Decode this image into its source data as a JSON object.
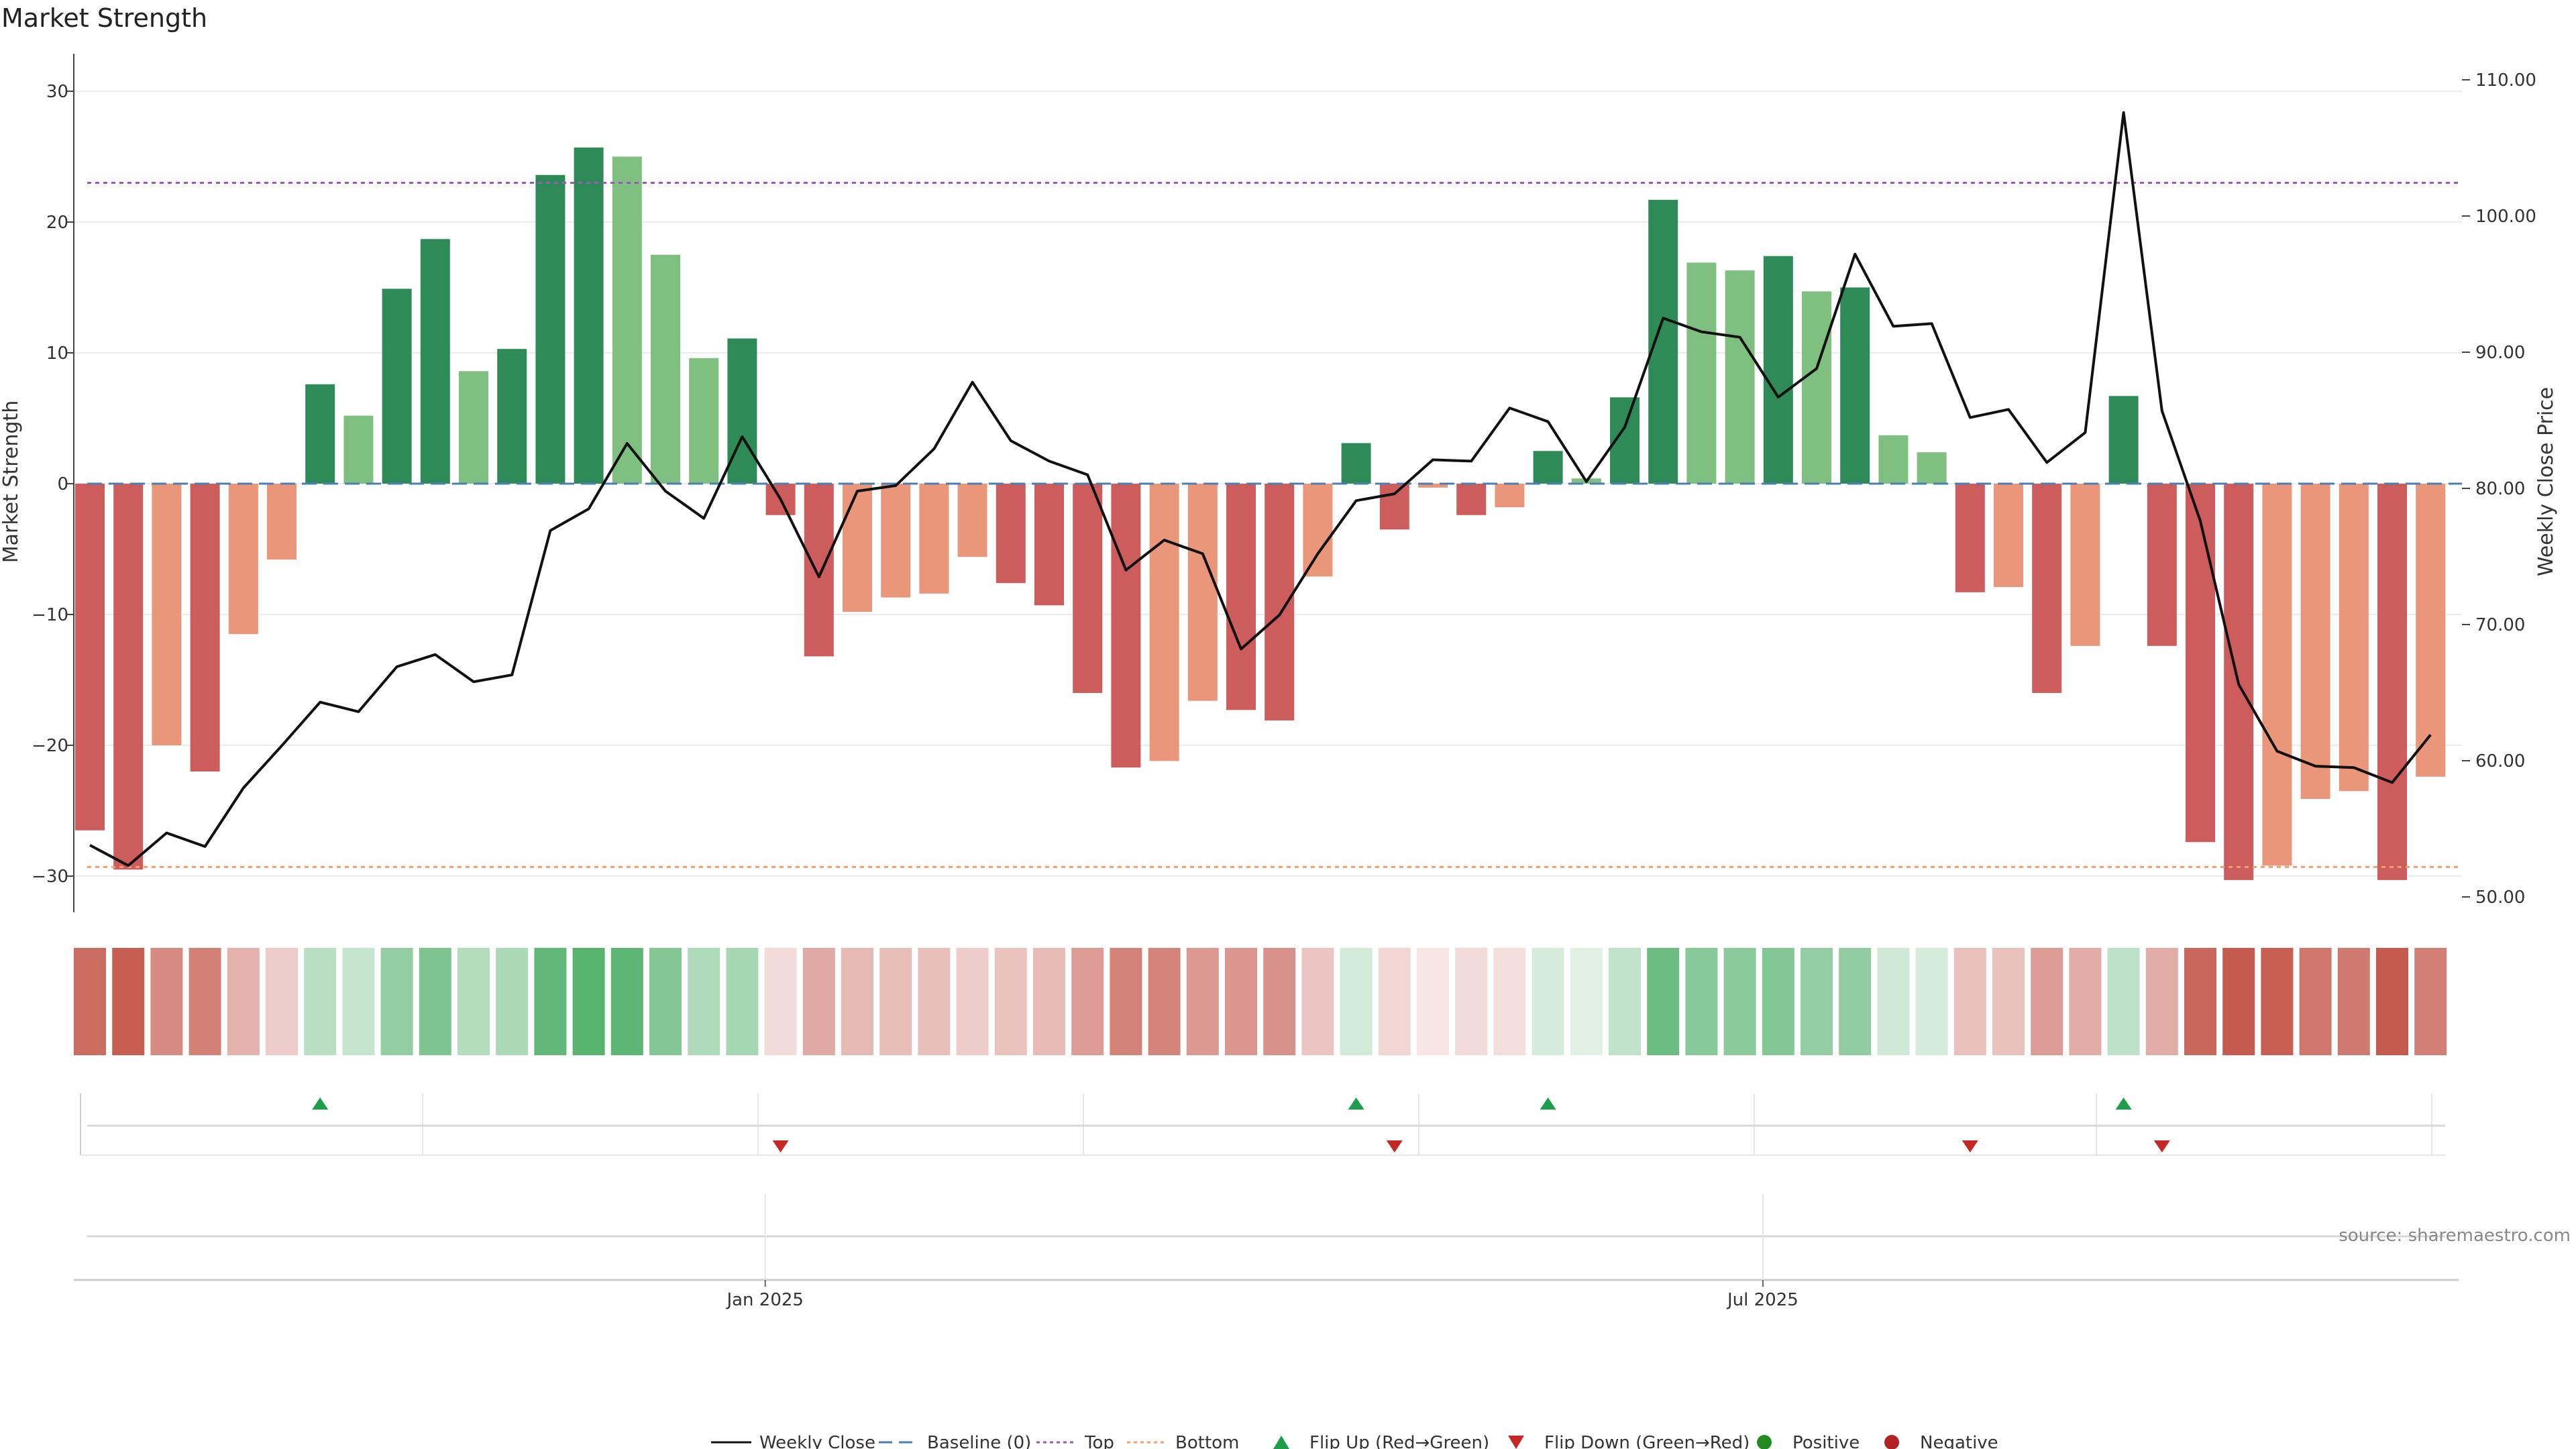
{
  "chart_data": {
    "type": "bar",
    "title": "Market Strength",
    "ylabel_left": "Market Strength",
    "ylabel_right": "Weekly Close Price",
    "source": "source: sharemaestro.com",
    "ylim_left": [
      -32,
      30
    ],
    "ylim_right": [
      49,
      110
    ],
    "yticks_left": [
      30,
      20,
      10,
      0,
      -10,
      -20,
      -30
    ],
    "ytick_labels_left": [
      "30",
      "20",
      "10",
      "0",
      "−10",
      "−20",
      "−30"
    ],
    "yticks_right": [
      110,
      100,
      90,
      80,
      70,
      60,
      50
    ],
    "ytick_labels_right": [
      "110.00",
      "100.00",
      "90.00",
      "80.00",
      "70.00",
      "60.00",
      "50.00"
    ],
    "x_tick_labels": [
      {
        "label": "Jan 2025",
        "index": 17.6
      },
      {
        "label": "Jul 2025",
        "index": 43.6
      }
    ],
    "baseline": 0,
    "top_threshold": 23,
    "bottom_threshold": -29.3,
    "strength": [
      -26.5,
      -29.5,
      -20,
      -22,
      -11.5,
      -5.8,
      7.6,
      5.2,
      14.9,
      18.7,
      8.6,
      10.3,
      23.6,
      25.7,
      25,
      17.5,
      9.6,
      11.1,
      -2.4,
      -13.2,
      -9.8,
      -8.7,
      -8.4,
      -5.6,
      -7.6,
      -9.3,
      -16,
      -21.7,
      -21.2,
      -16.6,
      -17.3,
      -18.1,
      -7.1,
      3.1,
      -3.5,
      -0.3,
      -2.4,
      -1.8,
      2.5,
      0.4,
      6.6,
      21.7,
      16.9,
      16.3,
      17.4,
      14.7,
      15,
      3.7,
      2.4,
      -8.3,
      -7.9,
      -16,
      -12.4,
      6.7,
      -12.4,
      -27.4,
      -30.3,
      -29.2,
      -24.1,
      -23.5,
      -30.3,
      -22.4
    ],
    "series": [
      {
        "name": "Weekly Close",
        "values": [
          53.8,
          52.3,
          54.7,
          53.7,
          58,
          61.1,
          64.3,
          63.6,
          66.9,
          67.8,
          65.8,
          66.3,
          76.9,
          78.5,
          83.3,
          79.8,
          77.8,
          83.8,
          79.2,
          73.5,
          79.8,
          80.2,
          82.9,
          87.8,
          83.5,
          82,
          81,
          74,
          76.2,
          75.2,
          68.2,
          70.7,
          75.2,
          79.1,
          79.6,
          82.1,
          82,
          85.9,
          84.9,
          80.5,
          84.5,
          92.5,
          91.5,
          91.1,
          86.7,
          88.8,
          97.2,
          91.9,
          92.1,
          85.2,
          85.8,
          81.9,
          84.1,
          107.6,
          85.7,
          77.6,
          65.6,
          60.7,
          59.6,
          59.5,
          58.4,
          61.9
        ]
      }
    ],
    "flip_up_indices": [
      6,
      33,
      38,
      53
    ],
    "flip_down_indices": [
      18,
      34,
      49,
      54
    ],
    "legend": [
      "Weekly Close",
      "Baseline (0)",
      "Top",
      "Bottom",
      "Flip Up (Red→Green)",
      "Flip Down (Green→Red)",
      "Positive",
      "Negative"
    ],
    "colors": {
      "strong_pos": "#2e8b57",
      "weak_pos": "#7fbf7f",
      "strong_neg": "#cd5c5c",
      "weak_neg": "#e9967a",
      "line": "#111111",
      "baseline": "#4a7fb5",
      "top": "#9b59b6",
      "bottom": "#f0a070",
      "flip_up": "#1e9e4a",
      "flip_down": "#c62828",
      "positive": "#228b22",
      "negative": "#b22222",
      "grid": "#ececec"
    }
  }
}
